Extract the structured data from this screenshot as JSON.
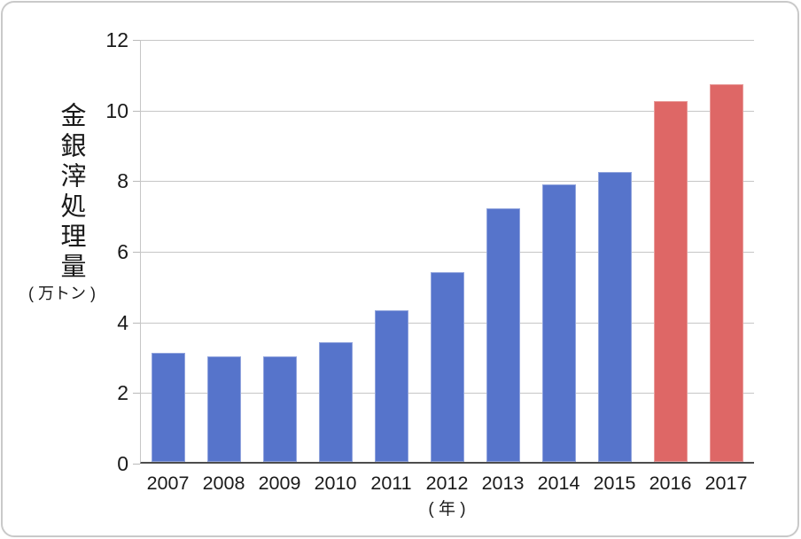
{
  "chart_data": {
    "type": "bar",
    "title": "",
    "categories": [
      "2007",
      "2008",
      "2009",
      "2010",
      "2011",
      "2012",
      "2013",
      "2014",
      "2015",
      "2016",
      "2017"
    ],
    "values": [
      3.1,
      3.0,
      3.0,
      3.4,
      4.3,
      5.4,
      7.2,
      7.9,
      8.25,
      10.25,
      10.75
    ],
    "bar_colors": [
      "#5674CB",
      "#5674CB",
      "#5674CB",
      "#5674CB",
      "#5674CB",
      "#5674CB",
      "#5674CB",
      "#5674CB",
      "#5674CB",
      "#DE6766",
      "#DE6766"
    ],
    "highlight_categories": [
      "2016",
      "2017"
    ],
    "ylabel": "金銀滓処理量",
    "ylabel_unit": "( 万トン )",
    "xlabel": "( 年 )",
    "ylim": [
      0,
      12
    ],
    "yticks": [
      0,
      2,
      4,
      6,
      8,
      10,
      12
    ],
    "grid": true,
    "legend_position": "none",
    "colors": {
      "bar_normal": "#5674CB",
      "bar_highlight": "#DE6766",
      "gridline": "#c6c6c6",
      "axis": "#4d4d4d",
      "text": "#1a1a1a",
      "frame_border": "#c9c9c9"
    }
  }
}
